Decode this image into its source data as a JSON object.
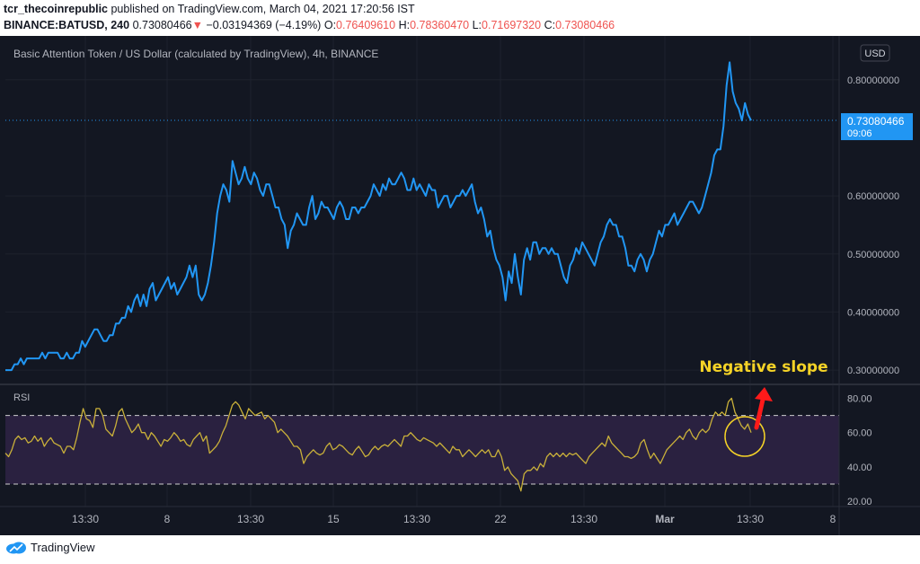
{
  "header": {
    "author": "tcr_thecoinrepublic",
    "published_text": " published on TradingView.com, March 04, 2021 17:20:56 IST",
    "symbol": "BINANCE:BATUSD, 240",
    "last": "0.73080466",
    "change_arrow": "▼",
    "change": "−0.03194369 (−4.19%)",
    "o_label": "O:",
    "o_value": "0.76409610",
    "h_label": "H:",
    "h_value": "0.78360470",
    "l_label": "L:",
    "l_value": "0.71697320",
    "c_label": "C:",
    "c_value": "0.73080466"
  },
  "chart": {
    "title": "Basic Attention Token / US Dollar (calculated by TradingView), 4h, BINANCE",
    "currency_button": "USD",
    "price_ticks": [
      "0.80000000",
      "0.60000000",
      "0.50000000",
      "0.40000000",
      "0.30000000"
    ],
    "price_tick_values": [
      0.8,
      0.6,
      0.5,
      0.4,
      0.3
    ],
    "last_price_label": "0.73080466",
    "countdown_label": "09:06",
    "rsi_label": "RSI",
    "rsi_ticks": [
      "80.00",
      "60.00",
      "40.00",
      "20.00"
    ],
    "rsi_tick_values": [
      80,
      60,
      40,
      20
    ],
    "time_ticks": [
      "13:30",
      "8",
      "13:30",
      "15",
      "13:30",
      "22",
      "13:30",
      "Mar",
      "13:30",
      "8"
    ],
    "annotation": "Negative slope",
    "colors": {
      "background": "#131722",
      "price_line": "#2196f3",
      "rsi_line": "#c9b03a",
      "rsi_band": "#2a2140",
      "annotation": "#f5d327",
      "arrow": "#ff1a1a",
      "last_price_bg": "#2196f3"
    }
  },
  "chart_data": [
    {
      "type": "line",
      "title": "Basic Attention Token / US Dollar (calculated by TradingView), 4h, BINANCE",
      "series": [
        {
          "values": [
            0.3,
            0.3,
            0.3,
            0.31,
            0.31,
            0.32,
            0.31,
            0.32,
            0.32,
            0.32,
            0.32,
            0.32,
            0.33,
            0.32,
            0.33,
            0.33,
            0.33,
            0.33,
            0.32,
            0.32,
            0.33,
            0.32,
            0.32,
            0.33,
            0.33,
            0.35,
            0.34,
            0.35,
            0.36,
            0.37,
            0.37,
            0.36,
            0.35,
            0.35,
            0.36,
            0.36,
            0.38,
            0.38,
            0.39,
            0.39,
            0.41,
            0.4,
            0.42,
            0.43,
            0.41,
            0.43,
            0.41,
            0.44,
            0.45,
            0.42,
            0.43,
            0.44,
            0.45,
            0.46,
            0.44,
            0.45,
            0.43,
            0.44,
            0.45,
            0.46,
            0.48,
            0.46,
            0.48,
            0.43,
            0.42,
            0.43,
            0.45,
            0.48,
            0.52,
            0.57,
            0.6,
            0.62,
            0.61,
            0.59,
            0.66,
            0.64,
            0.62,
            0.63,
            0.65,
            0.63,
            0.62,
            0.64,
            0.63,
            0.61,
            0.6,
            0.62,
            0.62,
            0.6,
            0.58,
            0.58,
            0.56,
            0.55,
            0.51,
            0.54,
            0.55,
            0.57,
            0.56,
            0.55,
            0.55,
            0.58,
            0.6,
            0.56,
            0.57,
            0.59,
            0.58,
            0.58,
            0.57,
            0.56,
            0.58,
            0.59,
            0.58,
            0.56,
            0.56,
            0.58,
            0.58,
            0.57,
            0.58,
            0.58,
            0.59,
            0.6,
            0.62,
            0.61,
            0.6,
            0.62,
            0.61,
            0.63,
            0.62,
            0.62,
            0.63,
            0.64,
            0.63,
            0.61,
            0.61,
            0.63,
            0.61,
            0.62,
            0.61,
            0.6,
            0.62,
            0.61,
            0.61,
            0.58,
            0.59,
            0.6,
            0.6,
            0.58,
            0.59,
            0.6,
            0.6,
            0.61,
            0.6,
            0.61,
            0.62,
            0.59,
            0.57,
            0.58,
            0.56,
            0.53,
            0.54,
            0.51,
            0.49,
            0.48,
            0.46,
            0.42,
            0.47,
            0.45,
            0.5,
            0.46,
            0.43,
            0.49,
            0.51,
            0.49,
            0.52,
            0.52,
            0.5,
            0.51,
            0.51,
            0.5,
            0.51,
            0.5,
            0.5,
            0.48,
            0.46,
            0.45,
            0.48,
            0.49,
            0.51,
            0.5,
            0.52,
            0.51,
            0.5,
            0.49,
            0.48,
            0.5,
            0.52,
            0.53,
            0.55,
            0.56,
            0.55,
            0.55,
            0.53,
            0.53,
            0.51,
            0.48,
            0.48,
            0.47,
            0.49,
            0.5,
            0.49,
            0.47,
            0.49,
            0.5,
            0.52,
            0.54,
            0.53,
            0.55,
            0.55,
            0.56,
            0.57,
            0.55,
            0.56,
            0.57,
            0.58,
            0.59,
            0.59,
            0.58,
            0.57,
            0.58,
            0.6,
            0.62,
            0.64,
            0.67,
            0.68,
            0.68,
            0.72,
            0.79,
            0.83,
            0.78,
            0.76,
            0.75,
            0.73,
            0.76,
            0.74,
            0.73
          ]
        }
      ],
      "ylim": [
        0.28,
        0.86
      ],
      "yticks": [
        0.3,
        0.4,
        0.5,
        0.6,
        0.8
      ]
    },
    {
      "type": "line",
      "title": "RSI",
      "series": [
        {
          "values": [
            48,
            46,
            50,
            56,
            58,
            56,
            57,
            54,
            55,
            58,
            55,
            57,
            52,
            55,
            57,
            54,
            53,
            52,
            48,
            52,
            52,
            50,
            57,
            66,
            74,
            68,
            67,
            63,
            74,
            74,
            70,
            62,
            60,
            58,
            64,
            72,
            74,
            68,
            64,
            60,
            62,
            65,
            60,
            60,
            56,
            60,
            58,
            55,
            52,
            56,
            55,
            57,
            60,
            58,
            55,
            56,
            53,
            52,
            56,
            58,
            60,
            55,
            58,
            48,
            50,
            52,
            55,
            60,
            64,
            70,
            76,
            78,
            76,
            72,
            68,
            74,
            72,
            70,
            71,
            72,
            68,
            70,
            68,
            66,
            60,
            62,
            60,
            58,
            55,
            52,
            52,
            50,
            42,
            46,
            48,
            50,
            48,
            47,
            48,
            52,
            54,
            50,
            51,
            53,
            52,
            50,
            48,
            47,
            50,
            52,
            49,
            46,
            47,
            50,
            52,
            50,
            52,
            53,
            52,
            54,
            56,
            54,
            52,
            58,
            58,
            60,
            58,
            56,
            55,
            57,
            56,
            55,
            54,
            52,
            54,
            52,
            50,
            48,
            52,
            50,
            50,
            46,
            48,
            50,
            48,
            46,
            48,
            50,
            48,
            50,
            46,
            46,
            50,
            46,
            38,
            40,
            36,
            34,
            32,
            26,
            36,
            38,
            38,
            40,
            38,
            42,
            40,
            46,
            48,
            46,
            48,
            46,
            48,
            46,
            48,
            47,
            48,
            46,
            44,
            42,
            46,
            48,
            50,
            52,
            54,
            52,
            58,
            54,
            52,
            50,
            48,
            46,
            46,
            45,
            46,
            48,
            54,
            56,
            50,
            45,
            48,
            45,
            42,
            46,
            50,
            52,
            54,
            56,
            58,
            56,
            60,
            62,
            58,
            56,
            60,
            62,
            60,
            62,
            68,
            72,
            70,
            72,
            70,
            78,
            80,
            72,
            68,
            64,
            62,
            65,
            60
          ]
        }
      ],
      "ylim": [
        18,
        86
      ],
      "yticks": [
        20,
        40,
        60,
        80
      ],
      "bands": [
        30,
        70
      ]
    }
  ]
}
